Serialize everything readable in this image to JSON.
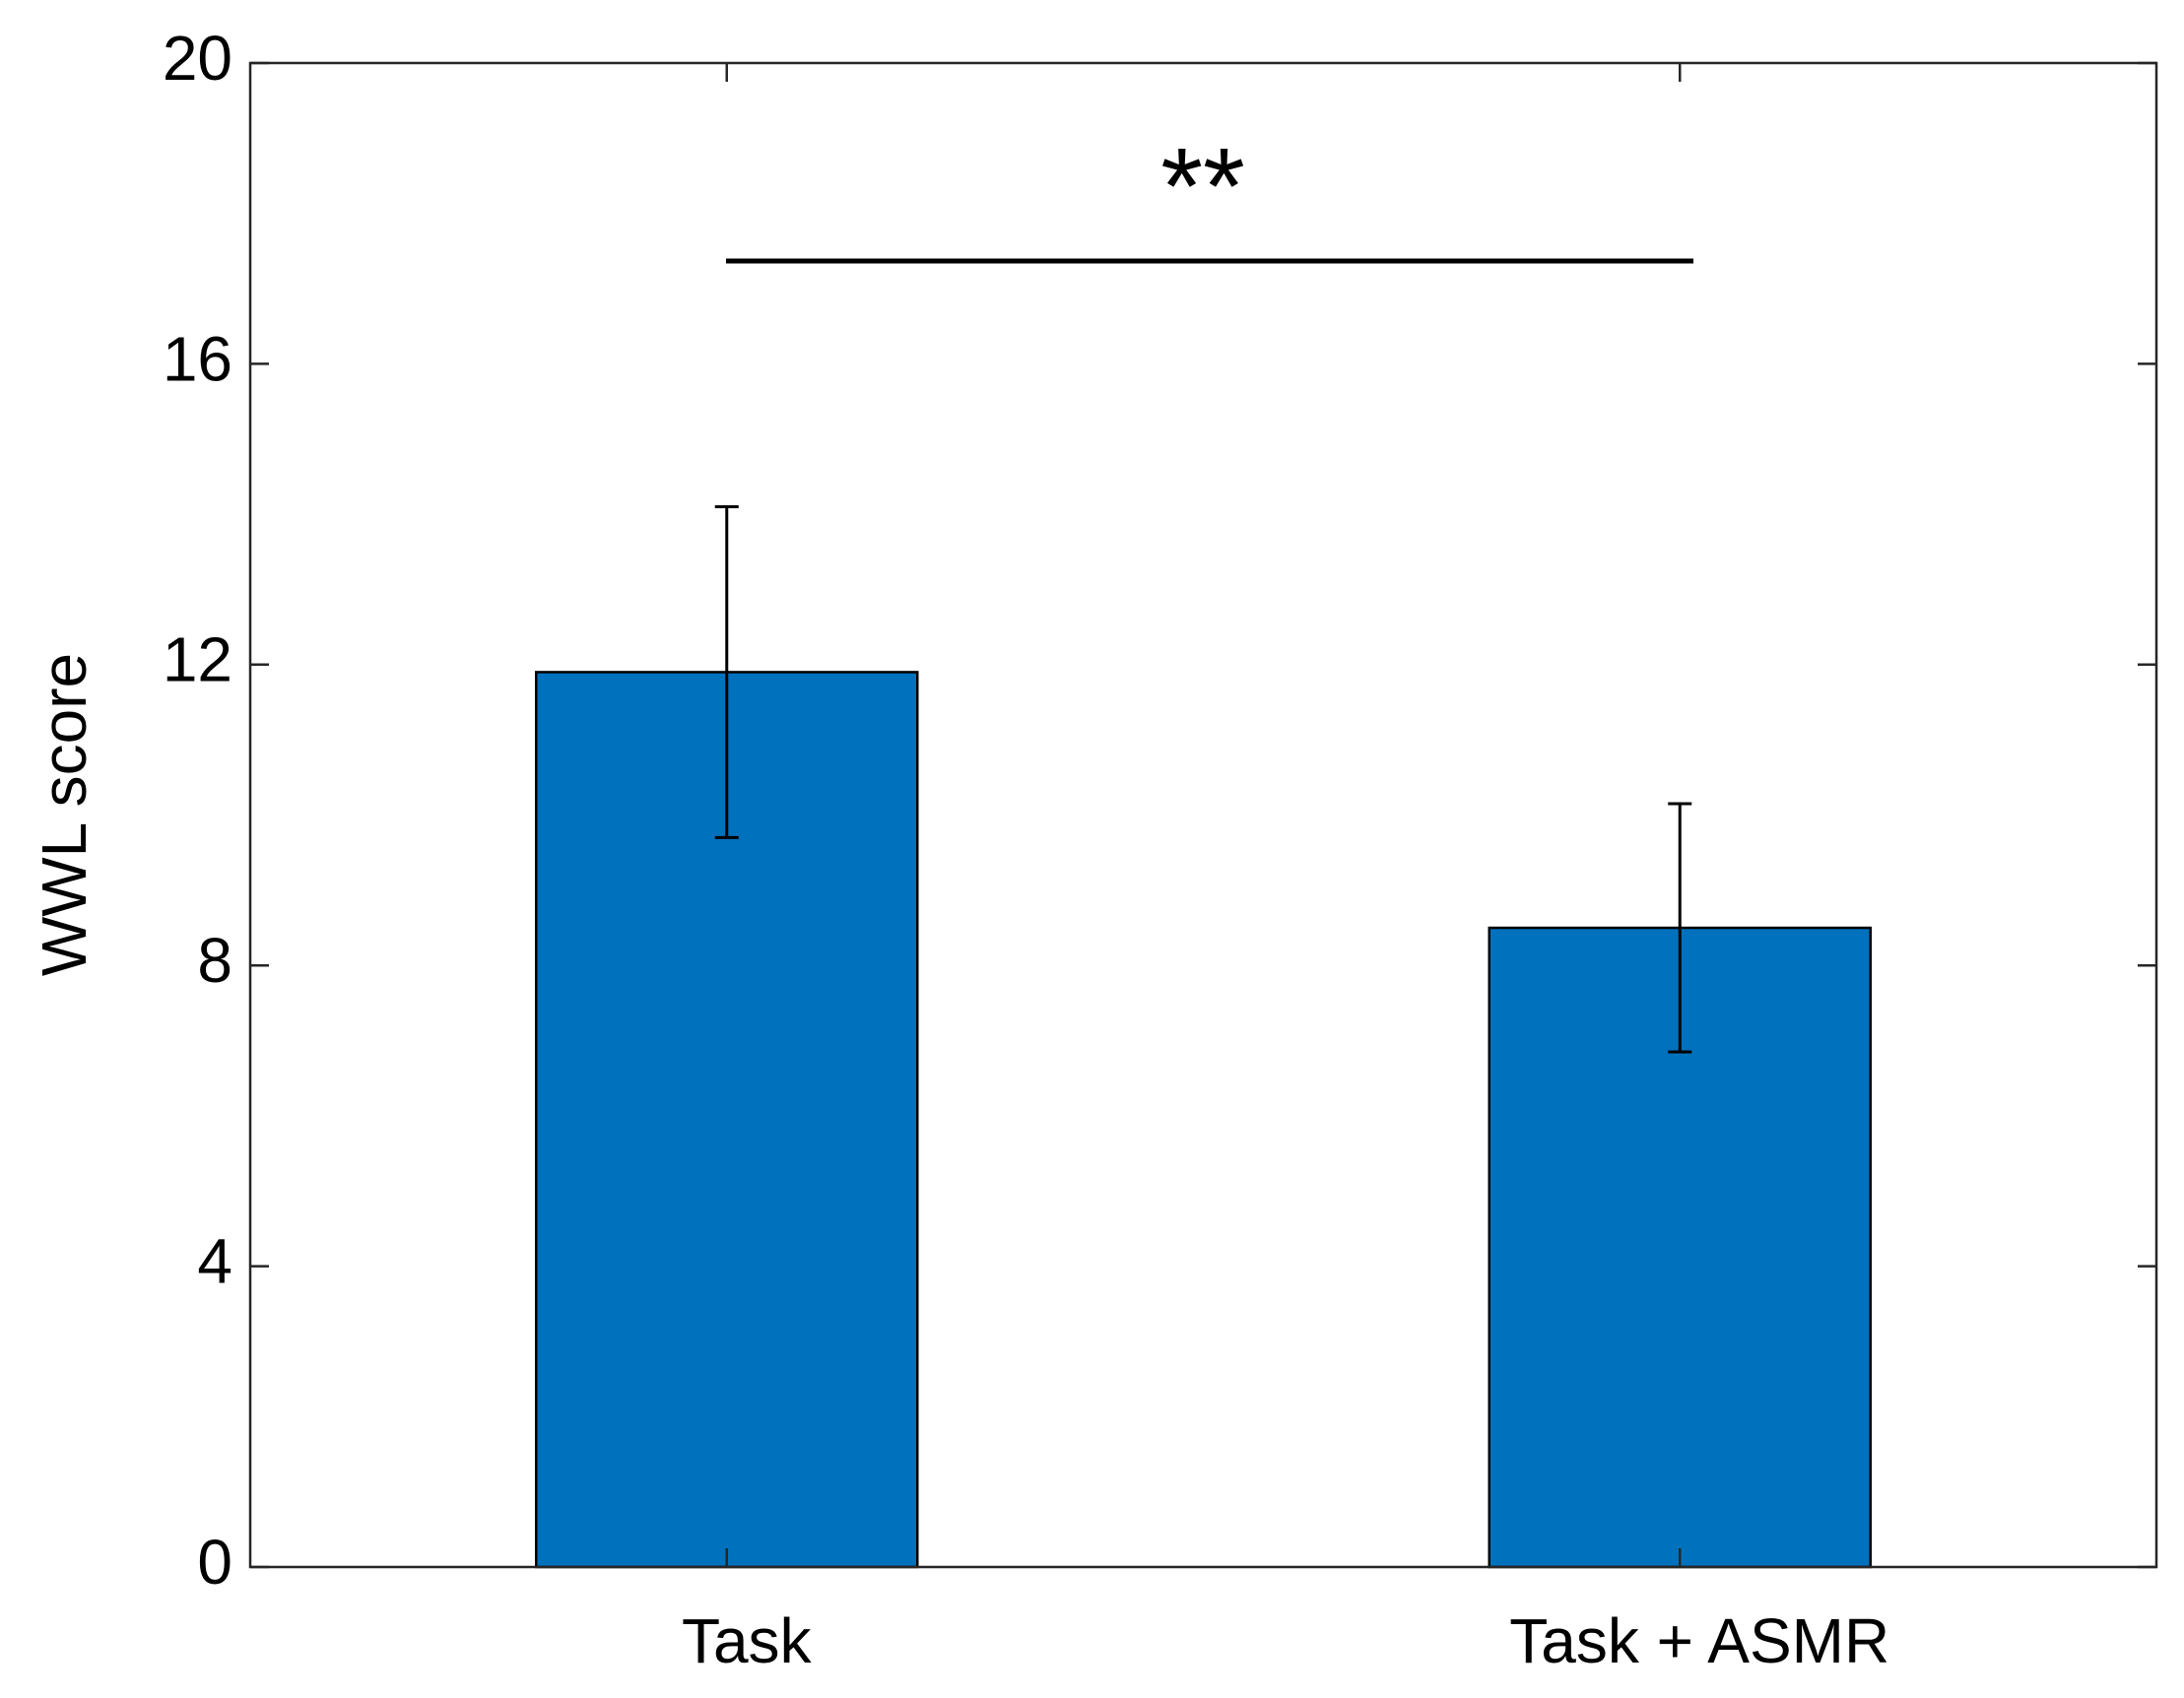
{
  "chart_data": {
    "type": "bar",
    "y_label": "WWL score",
    "categories": [
      "Task",
      "Task + ASMR"
    ],
    "values": [
      11.9,
      8.5
    ],
    "errors": [
      2.2,
      1.65
    ],
    "color": "#0072BD",
    "ylim": [
      0,
      20
    ],
    "yticks": [
      0,
      4,
      8,
      12,
      16,
      20
    ],
    "annotation": "**"
  }
}
